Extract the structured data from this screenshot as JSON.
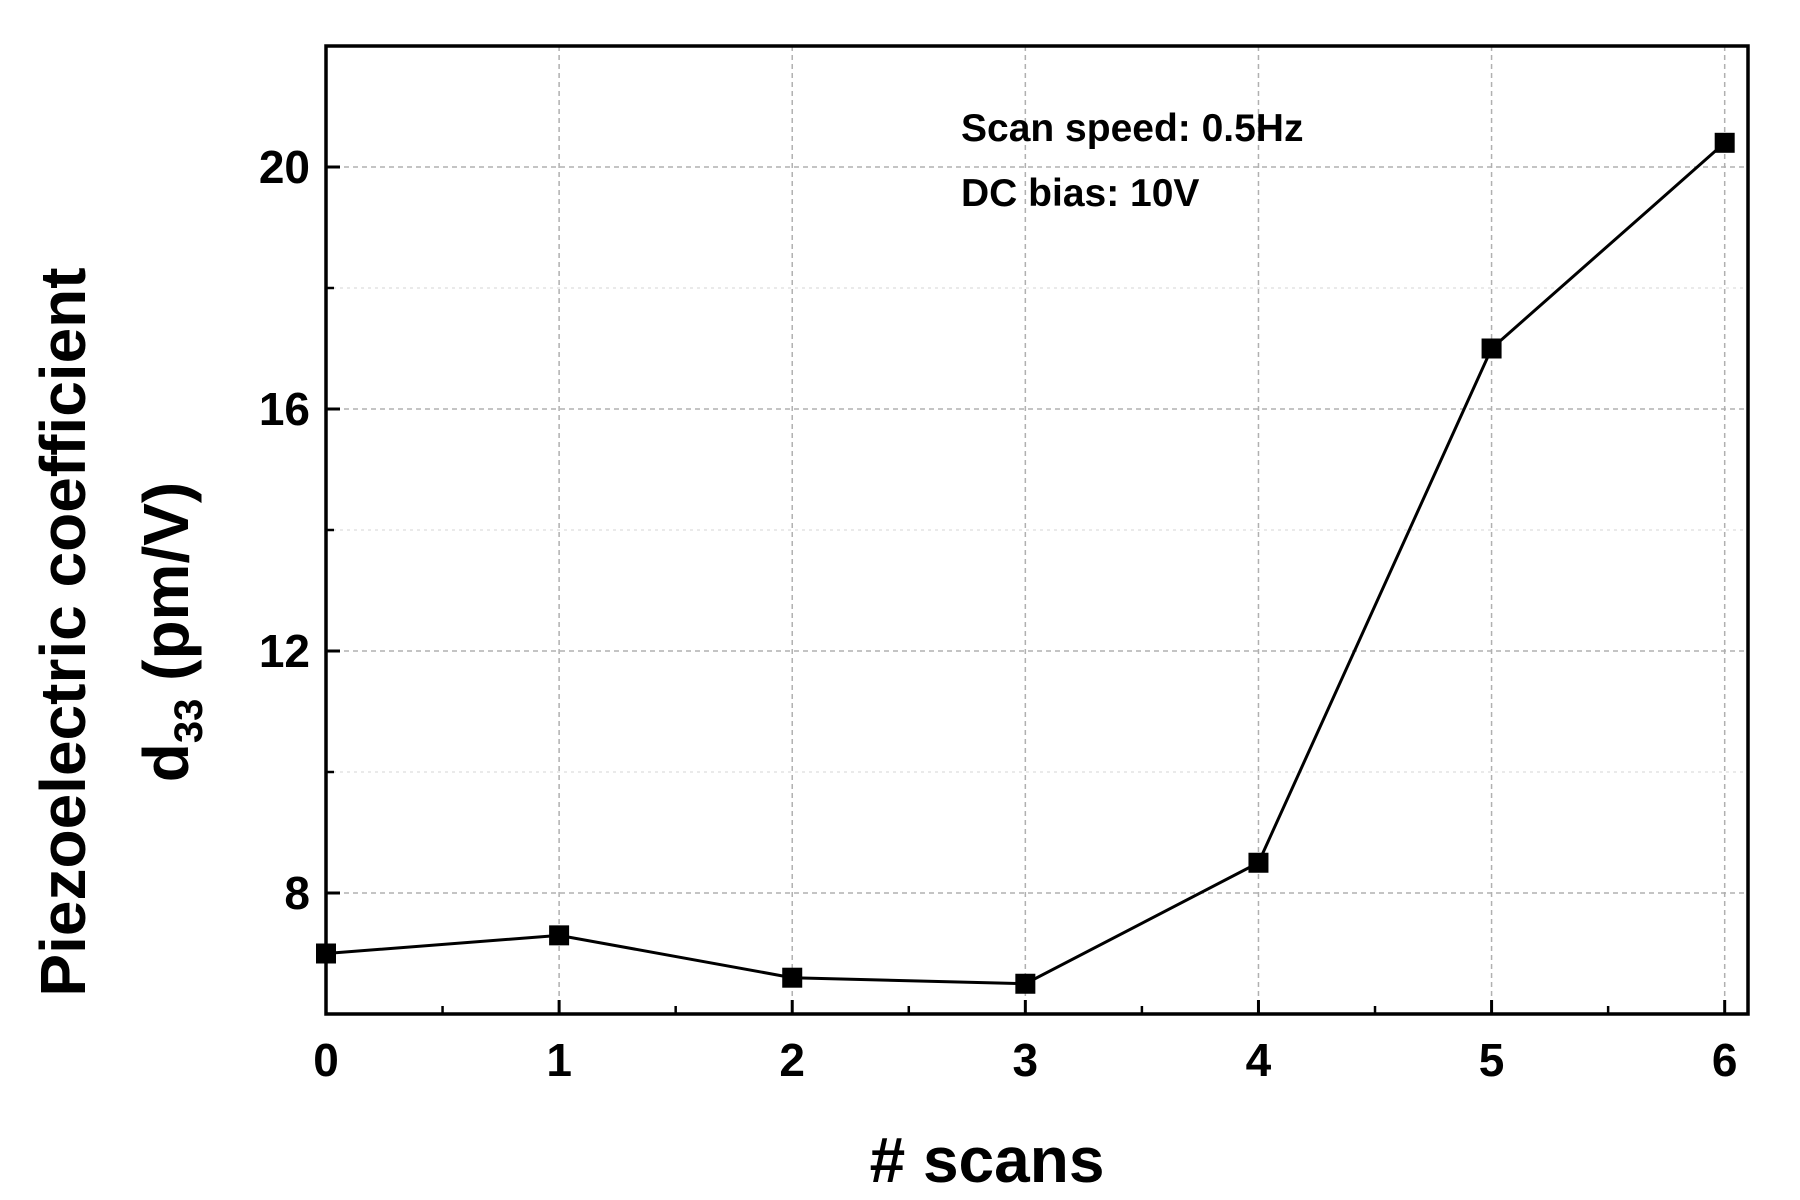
{
  "chart_data": {
    "type": "line",
    "x": [
      0,
      1,
      2,
      3,
      4,
      5,
      6
    ],
    "series": [
      {
        "values": [
          7.0,
          7.3,
          6.6,
          6.5,
          8.5,
          17.0,
          20.4
        ]
      }
    ],
    "xlabel": "# scans",
    "ylabel_line1": "Piezoelectric coefficient",
    "ylabel_line2_main": "d",
    "ylabel_line2_sub": "33",
    "ylabel_line2_unit": " (pm/V)",
    "xlim": [
      0,
      6.1
    ],
    "ylim": [
      6.0,
      22.0
    ],
    "xticks": [
      0,
      1,
      2,
      3,
      4,
      5,
      6
    ],
    "xtick_labels": [
      "0",
      "1",
      "2",
      "3",
      "4",
      "5",
      "6"
    ],
    "yticks": [
      8,
      12,
      16,
      20
    ],
    "ytick_labels": [
      "8",
      "12",
      "16",
      "20"
    ],
    "y_minor_ticks": [
      6,
      10,
      14,
      18,
      22
    ],
    "grid": true,
    "marker": "square",
    "annotations": [
      "Scan speed: 0.5Hz",
      "DC bias: 10V"
    ],
    "colors": {
      "line": "#000000",
      "grid": "#b0b0b0",
      "background": "#ffffff"
    }
  }
}
